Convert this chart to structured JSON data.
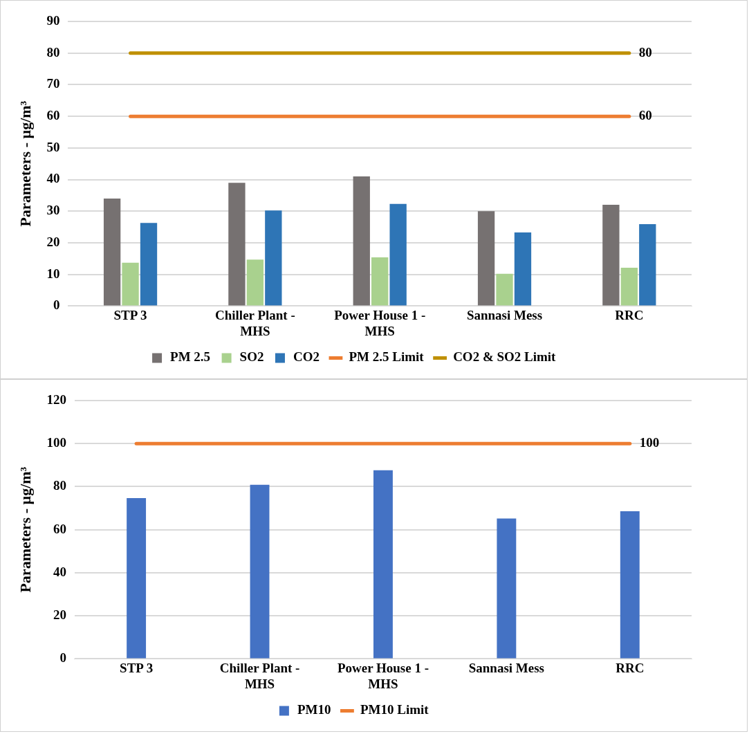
{
  "chart_data": [
    {
      "type": "bar",
      "ylabel": "Parameters - µg/m³",
      "categories": [
        "STP 3",
        "Chiller Plant - MHS",
        "Power House 1 - MHS",
        "Sannasi Mess",
        "RRC"
      ],
      "series": [
        {
          "name": "PM 2.5",
          "color": "#767171",
          "values": [
            34,
            39,
            41,
            30,
            32
          ]
        },
        {
          "name": "SO2",
          "color": "#a9d18e",
          "values": [
            13.7,
            14.7,
            15.4,
            10.2,
            12.1
          ]
        },
        {
          "name": "CO2",
          "color": "#2e75b6",
          "values": [
            26.3,
            30.2,
            32.3,
            23.3,
            25.9
          ]
        },
        {
          "name": "PM 2.5 Limit",
          "type": "line",
          "color": "#ed7d31",
          "values": [
            60,
            60,
            60,
            60,
            60
          ],
          "value_labels": [
            null,
            null,
            null,
            null,
            "60"
          ]
        },
        {
          "name": "CO2 & SO2 Limit",
          "type": "line",
          "color": "#bf9000",
          "values": [
            80,
            80,
            80,
            80,
            80
          ],
          "value_labels": [
            null,
            null,
            null,
            null,
            "80"
          ]
        }
      ],
      "ylim": [
        0,
        90
      ],
      "yticks": [
        0,
        10,
        20,
        30,
        40,
        50,
        60,
        70,
        80,
        90
      ],
      "grid": "y",
      "legend": "bottom",
      "marker": "none"
    },
    {
      "type": "bar",
      "ylabel": "Parameters - µg/m³",
      "categories": [
        "STP 3",
        "Chiller Plant - MHS",
        "Power House 1 - MHS",
        "Sannasi Mess",
        "RRC"
      ],
      "series": [
        {
          "name": "PM10",
          "color": "#4472c4",
          "values": [
            74.7,
            80.9,
            87.6,
            65.2,
            68.6
          ]
        },
        {
          "name": "PM10 Limit",
          "type": "line",
          "color": "#ed7d31",
          "values": [
            100,
            100,
            100,
            100,
            100
          ],
          "value_labels": [
            null,
            null,
            null,
            null,
            "100"
          ]
        }
      ],
      "ylim": [
        0,
        120
      ],
      "yticks": [
        0,
        20,
        40,
        60,
        80,
        100,
        120
      ],
      "grid": "y",
      "legend": "bottom",
      "marker": "none"
    }
  ]
}
